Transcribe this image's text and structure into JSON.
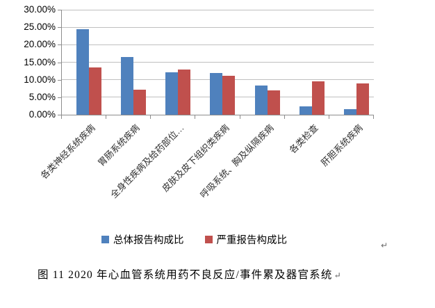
{
  "chart_data": {
    "type": "bar",
    "title": "",
    "xlabel": "",
    "ylabel": "",
    "categories": [
      "各类神经系统疾病",
      "胃肠系统疾病",
      "全身性疾病及给药部位…",
      "皮肤及皮下组织类疾病",
      "呼吸系统、胸及纵隔疾病",
      "各类检查",
      "肝胆系统疾病"
    ],
    "series": [
      {
        "name": "总体报告构成比",
        "color": "#4F81BD",
        "values": [
          24.5,
          16.5,
          12.2,
          12.0,
          8.3,
          2.4,
          1.6
        ]
      },
      {
        "name": "严重报告构成比",
        "color": "#C0504D",
        "values": [
          13.6,
          7.1,
          13.0,
          11.2,
          7.0,
          9.5,
          8.9
        ]
      }
    ],
    "ylim": [
      0,
      30
    ],
    "ytick_step": 5,
    "ytick_labels": [
      "0.00%",
      "5.00%",
      "10.00%",
      "15.00%",
      "20.00%",
      "25.00%",
      "30.00%"
    ],
    "grid": true,
    "legend_position": "bottom"
  },
  "colors": {
    "series_blue": "#4F81BD",
    "series_red": "#C0504D",
    "gridline": "#BFBFBF",
    "axis": "#8C8C8C"
  },
  "caption": {
    "text": "图 11  2020 年心血管系统用药不良反应/事件累及器官系统",
    "return_mark": "↵"
  },
  "page": {
    "return_mark": "↵"
  }
}
